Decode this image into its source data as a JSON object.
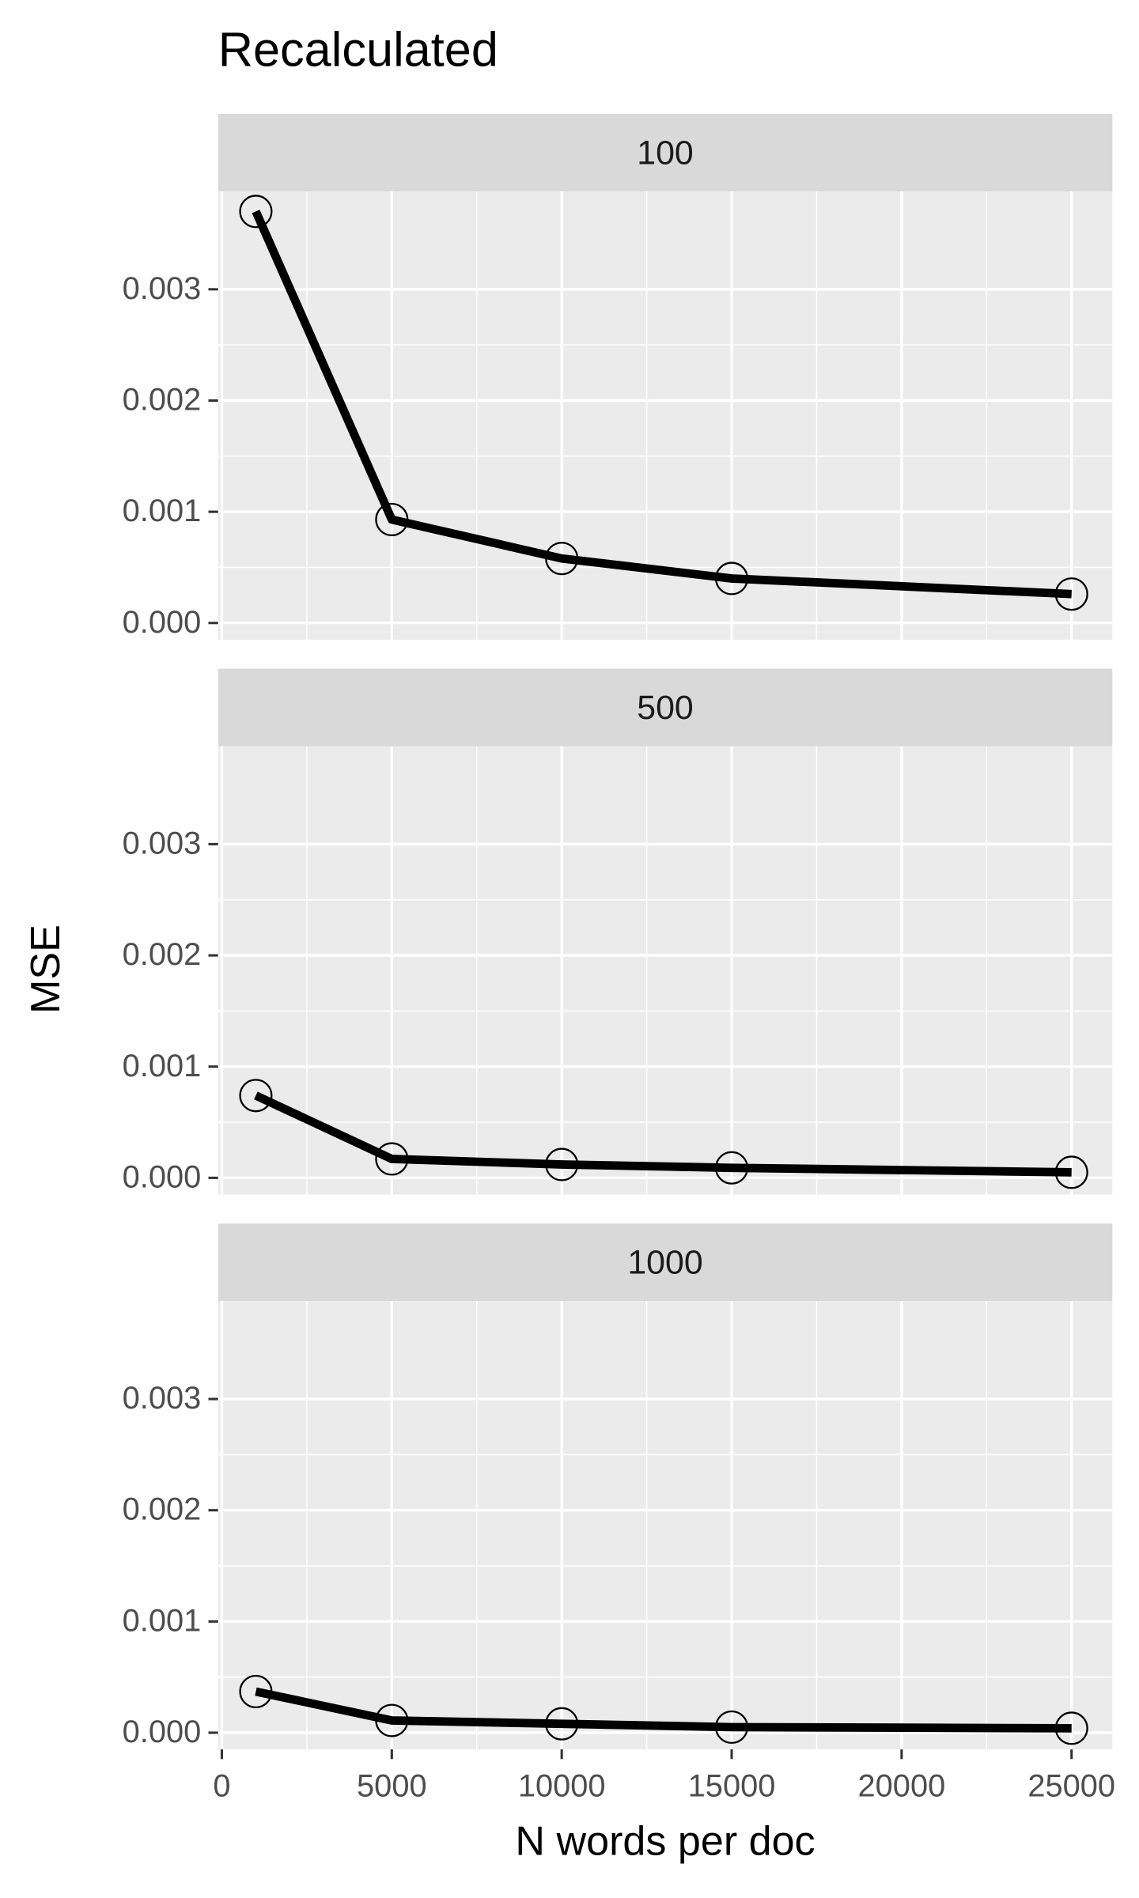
{
  "chart_data": {
    "type": "line",
    "title": "Recalculated",
    "x_label": "N words per doc",
    "y_label": "MSE",
    "x": [
      1000,
      5000,
      10000,
      15000,
      25000
    ],
    "xlim": [
      -110,
      26200
    ],
    "ylim": [
      -0.00015,
      0.00388
    ],
    "xticks": [
      0,
      5000,
      10000,
      15000,
      20000,
      25000
    ],
    "yticks": [
      {
        "value": 0,
        "label": "0.000"
      },
      0.001,
      0.002,
      0.003
    ],
    "grid": true,
    "color": "#000000",
    "panels": [
      {
        "label": "100",
        "values": [
          0.0037,
          0.00093,
          0.00058,
          0.0004,
          0.00026
        ]
      },
      {
        "label": "500",
        "values": [
          0.00074,
          0.00017,
          0.00012,
          9e-05,
          5e-05
        ]
      },
      {
        "label": "1000",
        "values": [
          0.00037,
          0.00011,
          8e-05,
          5e-05,
          4e-05
        ]
      }
    ]
  }
}
